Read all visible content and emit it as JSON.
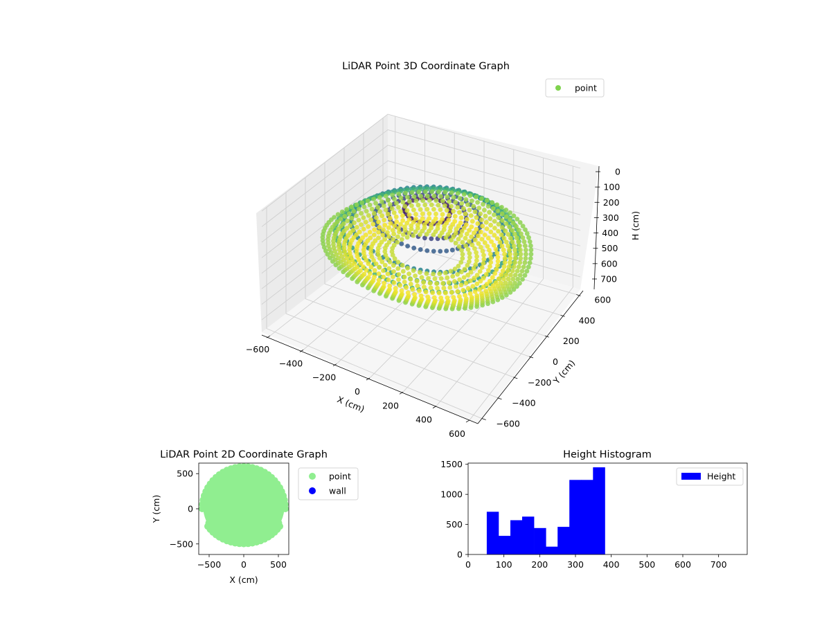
{
  "chart_data": [
    {
      "type": "scatter",
      "projection": "3d",
      "title": "LiDAR Point 3D Coordinate Graph",
      "xlabel": "X (cm)",
      "ylabel": "Y (cm)",
      "zlabel": "H (cm)",
      "xlim": [
        -650,
        650
      ],
      "ylim": [
        -650,
        650
      ],
      "zlim": [
        780,
        0
      ],
      "zaxis_inverted": true,
      "xticks": [
        "−600",
        "−400",
        "−200",
        "0",
        "200",
        "400",
        "600"
      ],
      "yticks": [
        "−600",
        "−400",
        "−200",
        "0",
        "200",
        "400",
        "600"
      ],
      "zticks": [
        "0",
        "100",
        "200",
        "300",
        "400",
        "500",
        "600",
        "700"
      ],
      "xtick_values": [
        -600,
        -400,
        -200,
        0,
        200,
        400,
        600
      ],
      "ytick_values": [
        -600,
        -400,
        -200,
        0,
        200,
        400,
        600
      ],
      "ztick_values": [
        0,
        100,
        200,
        300,
        400,
        500,
        600,
        700
      ],
      "grid": true,
      "colormap": "viridis",
      "color_by": "height",
      "legend": {
        "entries": [
          "point"
        ],
        "placement": "top-right",
        "color": "#7fd34e"
      },
      "series": [
        {
          "name": "point",
          "structure": "concentric rings of points, radius up to ~600 cm, heights 50-390 cm",
          "rings": [
            {
              "radius": 590,
              "height": 330
            },
            {
              "radius": 560,
              "height": 340
            },
            {
              "radius": 530,
              "height": 350
            },
            {
              "radius": 500,
              "height": 360
            },
            {
              "radius": 470,
              "height": 370
            },
            {
              "radius": 440,
              "height": 380
            },
            {
              "radius": 400,
              "height": 385
            },
            {
              "radius": 360,
              "height": 380
            },
            {
              "radius": 320,
              "height": 375
            },
            {
              "radius": 280,
              "height": 370
            },
            {
              "radius": 240,
              "height": 365
            },
            {
              "radius": 200,
              "height": 360
            },
            {
              "radius": 520,
              "height": 270
            },
            {
              "radius": 480,
              "height": 240
            },
            {
              "radius": 430,
              "height": 200
            },
            {
              "radius": 300,
              "height": 150
            },
            {
              "radius": 220,
              "height": 120
            },
            {
              "radius": 130,
              "height": 80
            }
          ]
        }
      ]
    },
    {
      "type": "scatter",
      "title": "LiDAR Point 2D Coordinate Graph",
      "xlabel": "X (cm)",
      "ylabel": "Y (cm)",
      "xlim": [
        -650,
        650
      ],
      "ylim": [
        -650,
        650
      ],
      "xticks": [
        "−500",
        "0",
        "500"
      ],
      "yticks": [
        "−500",
        "0",
        "500"
      ],
      "xtick_values": [
        -500,
        0,
        500
      ],
      "ytick_values": [
        -500,
        0,
        500
      ],
      "legend_placement": "outside-right",
      "series": [
        {
          "name": "point",
          "color": "#90ee90",
          "extent": {
            "x": [
              -600,
              600
            ],
            "y": [
              -500,
              600
            ]
          }
        },
        {
          "name": "wall",
          "color": "#0000ff",
          "count": 0
        }
      ]
    },
    {
      "type": "bar",
      "subtype": "histogram",
      "title": "Height Histogram",
      "xlabel": "",
      "ylabel": "",
      "xlim": [
        0,
        780
      ],
      "ylim": [
        0,
        1520
      ],
      "xticks": [
        "0",
        "100",
        "200",
        "300",
        "400",
        "500",
        "600",
        "700"
      ],
      "yticks": [
        "0",
        "500",
        "1000",
        "1500"
      ],
      "xtick_values": [
        0,
        100,
        200,
        300,
        400,
        500,
        600,
        700
      ],
      "ytick_values": [
        0,
        500,
        1000,
        1500
      ],
      "color": "#0000ff",
      "legend": {
        "entries": [
          "Height"
        ],
        "placement": "top-right"
      },
      "bin_edges": [
        52,
        85,
        118,
        151,
        184,
        217,
        250,
        283,
        316,
        349,
        382
      ],
      "values": [
        710,
        310,
        570,
        630,
        440,
        130,
        460,
        1240,
        1240,
        1450
      ],
      "series": [
        {
          "name": "Height",
          "values": [
            710,
            310,
            570,
            630,
            440,
            130,
            460,
            1240,
            1240,
            1450
          ]
        }
      ]
    }
  ]
}
